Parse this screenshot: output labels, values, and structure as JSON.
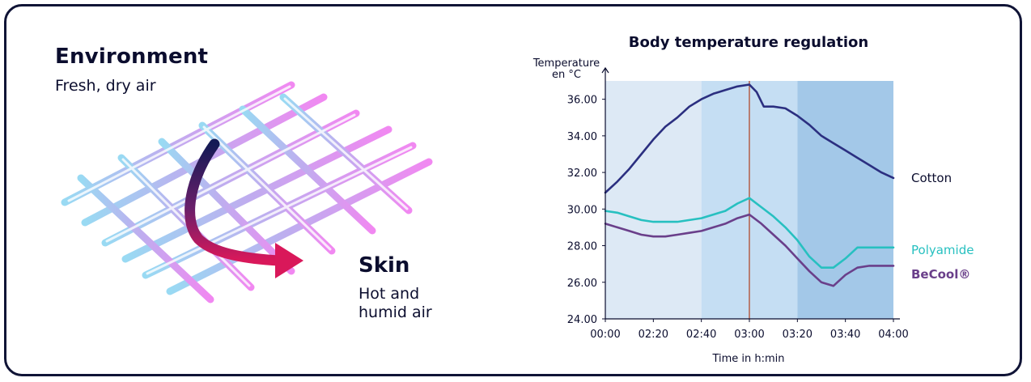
{
  "left": {
    "environment_title": "Environment",
    "environment_subtitle": "Fresh, dry air",
    "skin_title": "Skin",
    "skin_subtitle_line1": "Hot and",
    "skin_subtitle_line2": "humid air"
  },
  "chart_data": {
    "type": "line",
    "title": "Body temperature regulation",
    "ylabel_line1": "Temperature",
    "ylabel_line2": "en °C",
    "xlabel": "Time in h:min",
    "ylim": [
      24,
      37
    ],
    "xlim": [
      0,
      6
    ],
    "x_ticks": [
      "00:00",
      "02:20",
      "02:40",
      "03:00",
      "03:20",
      "03:40",
      "04:00"
    ],
    "y_ticks": [
      "24.00",
      "26.00",
      "28.00",
      "30.00",
      "32.00",
      "34.00",
      "36.00"
    ],
    "y_tick_values": [
      24,
      26,
      28,
      30,
      32,
      34,
      36
    ],
    "bands": [
      {
        "from": 0,
        "to": 2,
        "color": "#dde9f5"
      },
      {
        "from": 2,
        "to": 4,
        "color": "#c5def3"
      },
      {
        "from": 4,
        "to": 6,
        "color": "#a3c8e8"
      }
    ],
    "vline": {
      "x": 3,
      "color": "#b24a2e"
    },
    "series": [
      {
        "name": "Cotton",
        "color": "#2b2f80",
        "label_color": "#0b0d2e",
        "x": [
          0,
          0.25,
          0.5,
          0.75,
          1,
          1.25,
          1.5,
          1.75,
          2,
          2.25,
          2.5,
          2.75,
          3,
          3.15,
          3.3,
          3.5,
          3.75,
          4,
          4.25,
          4.5,
          4.75,
          5,
          5.25,
          5.5,
          5.75,
          6
        ],
        "values": [
          30.9,
          31.5,
          32.2,
          33.0,
          33.8,
          34.5,
          35.0,
          35.6,
          36.0,
          36.3,
          36.5,
          36.7,
          36.8,
          36.4,
          35.6,
          35.6,
          35.5,
          35.1,
          34.6,
          34.0,
          33.6,
          33.2,
          32.8,
          32.4,
          32.0,
          31.7
        ]
      },
      {
        "name": "Polyamide",
        "color": "#27c0c0",
        "label_color": "#27c0c0",
        "x": [
          0,
          0.25,
          0.5,
          0.75,
          1,
          1.25,
          1.5,
          1.75,
          2,
          2.25,
          2.5,
          2.75,
          3,
          3.25,
          3.5,
          3.75,
          4,
          4.25,
          4.5,
          4.75,
          5,
          5.25,
          5.5,
          5.75,
          6
        ],
        "values": [
          29.9,
          29.8,
          29.6,
          29.4,
          29.3,
          29.3,
          29.3,
          29.4,
          29.5,
          29.7,
          29.9,
          30.3,
          30.6,
          30.1,
          29.6,
          29.0,
          28.3,
          27.4,
          26.8,
          26.8,
          27.3,
          27.9,
          27.9,
          27.9,
          27.9
        ]
      },
      {
        "name": "BeCool®",
        "color": "#6a3f8a",
        "label_color": "#6a3f8a",
        "x": [
          0,
          0.25,
          0.5,
          0.75,
          1,
          1.25,
          1.5,
          1.75,
          2,
          2.25,
          2.5,
          2.75,
          3,
          3.25,
          3.5,
          3.75,
          4,
          4.25,
          4.5,
          4.75,
          5,
          5.25,
          5.5,
          5.75,
          6
        ],
        "values": [
          29.2,
          29.0,
          28.8,
          28.6,
          28.5,
          28.5,
          28.6,
          28.7,
          28.8,
          29.0,
          29.2,
          29.5,
          29.7,
          29.2,
          28.6,
          28.0,
          27.3,
          26.6,
          26.0,
          25.8,
          26.4,
          26.8,
          26.9,
          26.9,
          26.9
        ]
      }
    ]
  }
}
